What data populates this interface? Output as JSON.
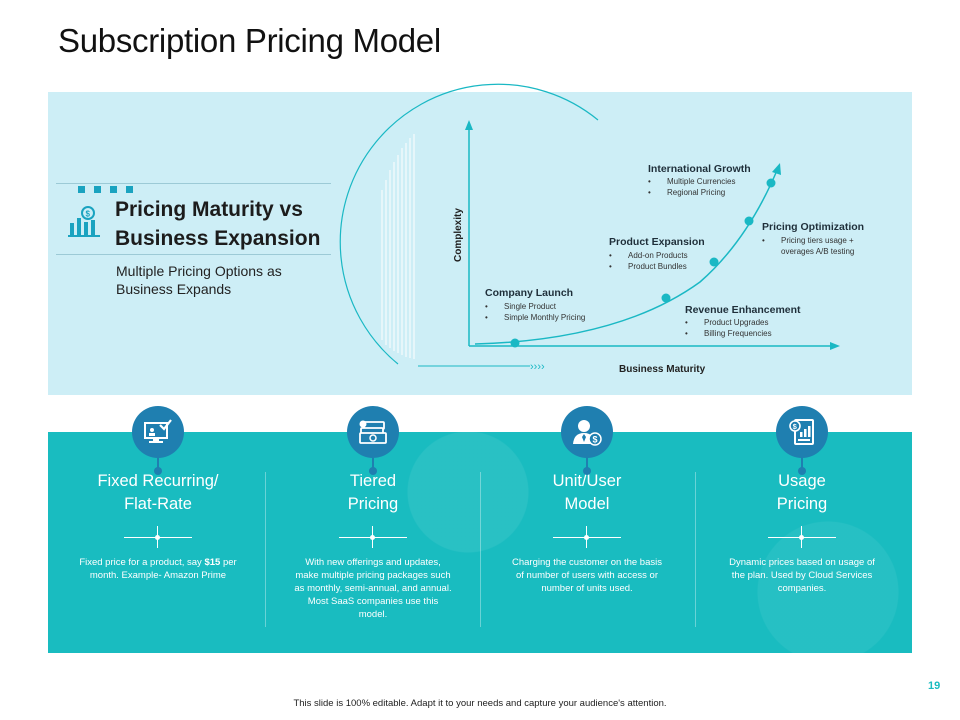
{
  "slide": {
    "title": "Subscription Pricing Model",
    "page_number": "19",
    "footer_note": "This slide is 100% editable. Adapt it to your needs and capture your audience's attention."
  },
  "maturity": {
    "heading": "Pricing Maturity vs Business Expansion",
    "subtitle": "Multiple Pricing Options as Business Expands",
    "icon": "bar-chart-dollar-icon",
    "y_axis_label": "Complexity",
    "x_axis_label": "Business Maturity",
    "stages": [
      {
        "title": "Company Launch",
        "bullets": [
          "Single Product",
          "Simple Monthly Pricing"
        ]
      },
      {
        "title": "Revenue Enhancement",
        "bullets": [
          "Product Upgrades",
          "Billing Frequencies"
        ]
      },
      {
        "title": "Product Expansion",
        "bullets": [
          "Add-on Products",
          "Product Bundles"
        ]
      },
      {
        "title": "Pricing Optimization",
        "bullets": [
          "Pricing tiers usage +",
          "overages A/B testing"
        ]
      },
      {
        "title": "International Growth",
        "bullets": [
          "Multiple Currencies",
          "Regional Pricing"
        ]
      }
    ],
    "arrow_glyph": "››››"
  },
  "models": [
    {
      "name_line1": "Fixed Recurring/",
      "name_line2": "Flat-Rate",
      "desc_pre": "Fixed price for a product, say",
      "desc_bold": "$15",
      "desc_post": "per month. Example- Amazon Prime",
      "icon": "monitor-checklist-icon"
    },
    {
      "name_line1": "Tiered",
      "name_line2": "Pricing",
      "desc": "With new offerings and updates, make multiple pricing packages such as monthly, semi-annual, and annual. Most SaaS companies use this model.",
      "icon": "money-cards-icon"
    },
    {
      "name_line1": "Unit/User",
      "name_line2": "Model",
      "desc": "Charging the customer on the basis of number of users with access or number of units used.",
      "icon": "user-dollar-icon"
    },
    {
      "name_line1": "Usage",
      "name_line2": "Pricing",
      "desc": "Dynamic prices based on usage of the plan. Used by Cloud Services companies.",
      "icon": "invoice-chart-icon"
    }
  ],
  "colors": {
    "accent_teal": "#19bcc0",
    "light_panel": "#cdeef6",
    "icon_blue": "#1f7fb0",
    "curve": "#1ab8c4"
  }
}
